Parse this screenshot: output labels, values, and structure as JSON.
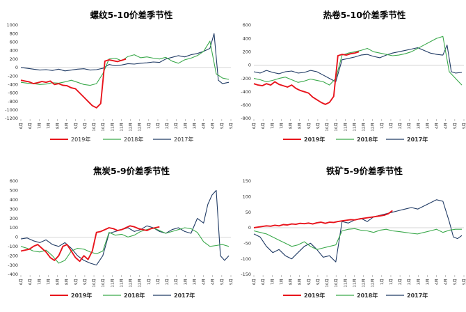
{
  "colors": {
    "s2019": "#e8141c",
    "s2018": "#3aa94b",
    "s2017": "#1f3a64"
  },
  "chart_data": [
    {
      "type": "line",
      "title": "螺纹5-10价差季节性",
      "ylim": [
        -1200,
        1000
      ],
      "yticks": [
        1000,
        800,
        600,
        400,
        200,
        0,
        -200,
        -400,
        -600,
        -800,
        -1000,
        -1200
      ],
      "xticks": [
        "6月",
        "6月",
        "7月",
        "7月",
        "8月",
        "8月",
        "9月",
        "9月",
        "10月",
        "10月",
        "11月",
        "11月",
        "12月",
        "12月",
        "1月",
        "1月",
        "2月",
        "2月",
        "3月",
        "3月",
        "4月",
        "4月",
        "5月",
        "5月"
      ],
      "legend": [
        "2019年",
        "2018年",
        "2017年"
      ],
      "legend_bold": false,
      "series": [
        {
          "name": "2019年",
          "x": [
            0,
            2,
            4,
            6,
            8,
            10,
            12,
            14,
            16,
            18,
            20,
            22,
            24,
            26,
            28,
            30,
            32,
            34,
            36,
            38,
            40,
            42,
            44,
            46,
            48,
            50
          ],
          "y": [
            -300,
            -320,
            -340,
            -380,
            -360,
            -330,
            -350,
            -320,
            -400,
            -380,
            -420,
            -430,
            -480,
            -500,
            -600,
            -700,
            -800,
            -900,
            -950,
            -850,
            150,
            180,
            160,
            140,
            170,
            200
          ]
        },
        {
          "name": "2018年",
          "x": [
            0,
            3,
            6,
            9,
            12,
            15,
            18,
            21,
            24,
            27,
            30,
            33,
            36,
            39,
            42,
            45,
            48,
            51,
            54,
            57,
            60,
            63,
            66,
            69,
            72,
            75,
            78,
            81,
            84,
            87,
            90,
            93,
            96,
            99
          ],
          "y": [
            -350,
            -370,
            -380,
            -400,
            -390,
            -360,
            -370,
            -340,
            -300,
            -350,
            -400,
            -420,
            -380,
            -150,
            200,
            220,
            160,
            260,
            300,
            230,
            250,
            220,
            200,
            240,
            150,
            100,
            180,
            220,
            280,
            380,
            620,
            -150,
            -250,
            -280
          ]
        },
        {
          "name": "2017年",
          "x": [
            0,
            3,
            6,
            9,
            12,
            15,
            18,
            21,
            24,
            27,
            30,
            33,
            36,
            39,
            42,
            45,
            48,
            51,
            54,
            57,
            60,
            63,
            66,
            69,
            72,
            75,
            78,
            81,
            84,
            87,
            90,
            92,
            94,
            96,
            99
          ],
          "y": [
            0,
            -20,
            -40,
            -60,
            -50,
            -70,
            -40,
            -80,
            -60,
            -40,
            -30,
            -60,
            -50,
            -20,
            70,
            40,
            60,
            90,
            80,
            100,
            110,
            130,
            120,
            200,
            240,
            280,
            250,
            300,
            330,
            380,
            450,
            800,
            -300,
            -380,
            -350
          ]
        }
      ]
    },
    {
      "type": "line",
      "title": "热卷5-10价差季节性",
      "ylim": [
        -800,
        600
      ],
      "yticks": [
        600,
        400,
        200,
        0,
        -200,
        -400,
        -600,
        -800
      ],
      "xticks": [
        "6月",
        "6月",
        "7月",
        "7月",
        "8月",
        "8月",
        "9月",
        "9月",
        "10月",
        "10月",
        "11月",
        "11月",
        "12月",
        "12月",
        "1月",
        "1月",
        "2月",
        "2月",
        "3月",
        "3月",
        "4月",
        "4月",
        "5月",
        "5月"
      ],
      "legend": [
        "2019年",
        "2018年",
        "2017年"
      ],
      "legend_bold": true,
      "series": [
        {
          "name": "2019年",
          "x": [
            0,
            2,
            4,
            6,
            8,
            10,
            12,
            14,
            16,
            18,
            20,
            22,
            24,
            26,
            28,
            30,
            32,
            34,
            36,
            38,
            40,
            42,
            44,
            46,
            48,
            50
          ],
          "y": [
            -280,
            -300,
            -310,
            -280,
            -300,
            -250,
            -290,
            -310,
            -330,
            -300,
            -350,
            -380,
            -400,
            -420,
            -480,
            -520,
            -560,
            -590,
            -560,
            -470,
            140,
            160,
            150,
            170,
            180,
            200
          ]
        },
        {
          "name": "2018年",
          "x": [
            0,
            3,
            6,
            9,
            12,
            15,
            18,
            21,
            24,
            27,
            30,
            33,
            36,
            39,
            42,
            45,
            48,
            51,
            54,
            57,
            60,
            63,
            66,
            69,
            72,
            75,
            78,
            81,
            84,
            87,
            90,
            93,
            96,
            99
          ],
          "y": [
            -200,
            -220,
            -250,
            -230,
            -200,
            -180,
            -220,
            -260,
            -240,
            -210,
            -230,
            -250,
            -300,
            -200,
            150,
            180,
            200,
            220,
            250,
            200,
            180,
            160,
            140,
            150,
            170,
            200,
            250,
            300,
            350,
            400,
            430,
            -100,
            -200,
            -300
          ]
        },
        {
          "name": "2017年",
          "x": [
            0,
            3,
            6,
            9,
            12,
            15,
            18,
            21,
            24,
            27,
            30,
            33,
            36,
            39,
            42,
            45,
            48,
            51,
            54,
            57,
            60,
            63,
            66,
            69,
            72,
            75,
            78,
            81,
            84,
            87,
            90,
            92,
            94,
            96,
            99
          ],
          "y": [
            -100,
            -120,
            -80,
            -110,
            -130,
            -100,
            -90,
            -120,
            -110,
            -80,
            -100,
            -150,
            -200,
            -250,
            80,
            100,
            120,
            150,
            160,
            130,
            110,
            150,
            180,
            200,
            220,
            240,
            260,
            220,
            180,
            160,
            150,
            300,
            -100,
            -120,
            -110
          ]
        }
      ]
    },
    {
      "type": "line",
      "title": "焦炭5-9价差季节性",
      "ylim": [
        -400,
        600
      ],
      "yticks": [
        600,
        500,
        400,
        300,
        200,
        100,
        0,
        -100,
        -200,
        -300,
        -400
      ],
      "xticks": [
        "6月",
        "6月",
        "7月",
        "7月",
        "8月",
        "8月",
        "9月",
        "9月",
        "10月",
        "10月",
        "11月",
        "11月",
        "12月",
        "12月",
        "1月",
        "1月",
        "2月",
        "2月",
        "3月",
        "3月",
        "4月",
        "4月",
        "5月",
        "5月"
      ],
      "legend": [
        "2019年",
        "2018年",
        "2017年"
      ],
      "legend_bold": true,
      "series": [
        {
          "name": "2019年",
          "x": [
            0,
            2,
            4,
            6,
            8,
            10,
            12,
            14,
            16,
            18,
            20,
            22,
            24,
            26,
            28,
            30,
            32,
            34,
            36,
            38,
            40,
            42,
            44,
            46,
            48,
            50,
            52,
            54,
            56,
            58,
            60,
            62,
            64,
            66
          ],
          "y": [
            -150,
            -140,
            -130,
            -100,
            -80,
            -120,
            -160,
            -220,
            -250,
            -200,
            -100,
            -80,
            -150,
            -220,
            -260,
            -200,
            -240,
            -150,
            50,
            60,
            80,
            100,
            90,
            70,
            80,
            100,
            120,
            110,
            90,
            80,
            70,
            90,
            100,
            110
          ]
        },
        {
          "name": "2018年",
          "x": [
            0,
            3,
            6,
            9,
            12,
            15,
            18,
            21,
            24,
            27,
            30,
            33,
            36,
            39,
            42,
            45,
            48,
            51,
            54,
            57,
            60,
            63,
            66,
            69,
            72,
            75,
            78,
            81,
            84,
            87,
            90,
            93,
            96,
            99
          ],
          "y": [
            -100,
            -120,
            -150,
            -160,
            -140,
            -200,
            -280,
            -250,
            -150,
            -120,
            -130,
            -160,
            -180,
            -150,
            50,
            20,
            30,
            0,
            20,
            60,
            80,
            100,
            70,
            40,
            60,
            80,
            100,
            90,
            50,
            -50,
            -100,
            -90,
            -80,
            -100
          ]
        },
        {
          "name": "2017年",
          "x": [
            0,
            3,
            6,
            9,
            12,
            15,
            18,
            21,
            24,
            27,
            30,
            33,
            36,
            39,
            42,
            45,
            48,
            51,
            54,
            57,
            60,
            63,
            66,
            69,
            72,
            75,
            78,
            81,
            84,
            87,
            89,
            91,
            93,
            95,
            97,
            99
          ],
          "y": [
            -20,
            -10,
            -40,
            -60,
            -30,
            -80,
            -100,
            -60,
            -120,
            -200,
            -250,
            -280,
            -300,
            -200,
            40,
            60,
            80,
            100,
            60,
            80,
            120,
            100,
            60,
            40,
            80,
            100,
            60,
            40,
            200,
            150,
            350,
            450,
            500,
            -200,
            -250,
            -200
          ]
        }
      ]
    },
    {
      "type": "line",
      "title": "铁矿5-9价差季节性",
      "ylim": [
        -150,
        150
      ],
      "yticks": [
        150,
        100,
        50,
        0,
        -50,
        -100,
        -150
      ],
      "xticks": [
        "6月",
        "6月",
        "7月",
        "7月",
        "8月",
        "8月",
        "9月",
        "9月",
        "10月",
        "10月",
        "11月",
        "11月",
        "12月",
        "12月",
        "1月",
        "1月",
        "2月",
        "2月",
        "3月",
        "3月",
        "4月",
        "4月",
        "5月",
        "5月"
      ],
      "legend": [
        "2019年",
        "2018年",
        "2017年"
      ],
      "legend_bold": true,
      "series": [
        {
          "name": "2019年",
          "x": [
            0,
            2,
            4,
            6,
            8,
            10,
            12,
            14,
            16,
            18,
            20,
            22,
            24,
            26,
            28,
            30,
            32,
            34,
            36,
            38,
            40,
            42,
            44,
            46,
            48,
            50,
            52,
            54,
            56,
            58,
            60,
            62,
            64,
            66
          ],
          "y": [
            0,
            2,
            4,
            6,
            5,
            8,
            6,
            10,
            9,
            12,
            11,
            14,
            13,
            15,
            12,
            16,
            18,
            14,
            18,
            17,
            20,
            22,
            24,
            26,
            25,
            28,
            30,
            32,
            34,
            36,
            38,
            40,
            45,
            55
          ]
        },
        {
          "name": "2018年",
          "x": [
            0,
            3,
            6,
            9,
            12,
            15,
            18,
            21,
            24,
            27,
            30,
            33,
            36,
            39,
            42,
            45,
            48,
            51,
            54,
            57,
            60,
            63,
            66,
            69,
            72,
            75,
            78,
            81,
            84,
            87,
            90,
            93,
            96,
            99
          ],
          "y": [
            -10,
            -15,
            -20,
            -30,
            -40,
            -50,
            -60,
            -55,
            -45,
            -60,
            -70,
            -65,
            -60,
            -55,
            -10,
            -5,
            -3,
            -8,
            -10,
            -15,
            -8,
            -5,
            -10,
            -12,
            -15,
            -18,
            -20,
            -15,
            -10,
            -5,
            -15,
            -8,
            -5,
            -5
          ]
        },
        {
          "name": "2017年",
          "x": [
            0,
            3,
            6,
            9,
            12,
            15,
            18,
            21,
            24,
            27,
            30,
            33,
            36,
            39,
            42,
            45,
            48,
            51,
            54,
            57,
            60,
            63,
            66,
            69,
            72,
            75,
            78,
            81,
            84,
            87,
            90,
            93,
            95,
            97,
            99
          ],
          "y": [
            -20,
            -30,
            -60,
            -80,
            -70,
            -90,
            -100,
            -80,
            -60,
            -50,
            -70,
            -95,
            -90,
            -110,
            20,
            15,
            25,
            30,
            20,
            35,
            40,
            45,
            50,
            55,
            60,
            65,
            60,
            70,
            80,
            90,
            85,
            20,
            -30,
            -35,
            -25
          ]
        }
      ]
    }
  ]
}
